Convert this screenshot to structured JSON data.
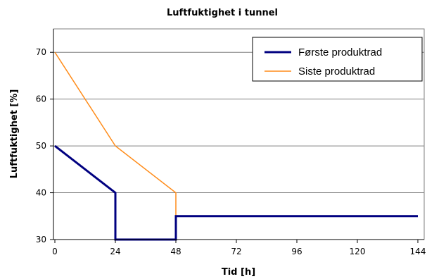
{
  "chart_data": {
    "type": "line",
    "title": "Luftfuktighet i tunnel",
    "xlabel": "Tid [h]",
    "ylabel": "Luftfuktighet [%]",
    "xlim": [
      0,
      144
    ],
    "ylim": [
      30,
      75
    ],
    "x_ticks": [
      0,
      24,
      48,
      72,
      96,
      120,
      144
    ],
    "y_ticks": [
      30,
      40,
      50,
      60,
      70
    ],
    "grid": "horizontal",
    "legend_position": "top-right",
    "series": [
      {
        "name": "Første produktrad",
        "color": "#000080",
        "points": [
          [
            0,
            50
          ],
          [
            24,
            40
          ],
          [
            24,
            30
          ],
          [
            48,
            30
          ],
          [
            48,
            35
          ],
          [
            144,
            35
          ]
        ]
      },
      {
        "name": "Siste produktrad",
        "color": "#FF8C1A",
        "points": [
          [
            0,
            70
          ],
          [
            24,
            50
          ],
          [
            48,
            40
          ],
          [
            48,
            35
          ],
          [
            144,
            35
          ]
        ]
      }
    ]
  }
}
